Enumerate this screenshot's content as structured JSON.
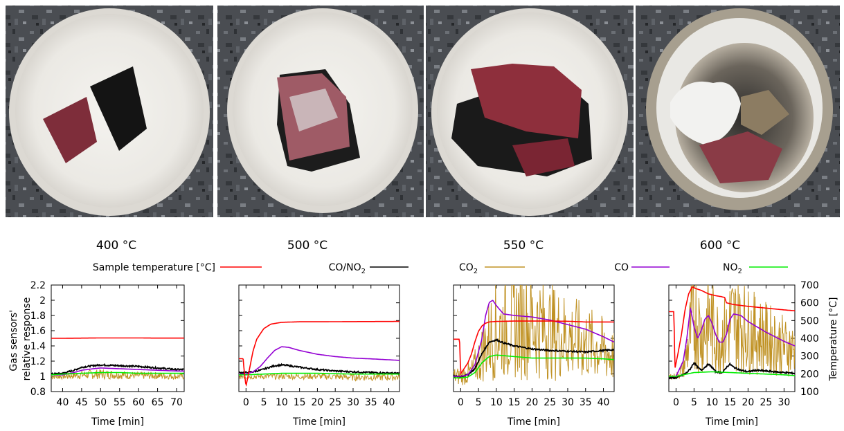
{
  "chart_data": [
    {
      "type": "line",
      "title": "400 °C",
      "xlabel": "Time [min]",
      "ylabel": "Gas sensors' relative response",
      "ylabel2": "Temperature [°C]",
      "xlim": [
        37,
        72
      ],
      "ylim": [
        0.8,
        2.2
      ],
      "y2lim": [
        100,
        700
      ],
      "xticks": [
        40,
        45,
        50,
        55,
        60,
        65,
        70
      ],
      "yticks": [
        0.8,
        1,
        1.2,
        1.4,
        1.6,
        1.8,
        2,
        2.2
      ],
      "series": [
        {
          "name": "Sample temperature [°C]",
          "axis": "right",
          "x": [
            37,
            40,
            45,
            50,
            55,
            60,
            65,
            70,
            72
          ],
          "values": [
            400,
            400,
            401,
            402,
            402,
            402,
            401,
            401,
            401
          ]
        },
        {
          "name": "CO/NO2",
          "x": [
            37,
            40,
            43,
            45,
            48,
            50,
            55,
            60,
            65,
            70,
            72
          ],
          "values": [
            1.03,
            1.04,
            1.08,
            1.12,
            1.14,
            1.15,
            1.14,
            1.13,
            1.11,
            1.09,
            1.09
          ]
        },
        {
          "name": "CO2",
          "noisy": true,
          "x": [
            37,
            40,
            45,
            50,
            55,
            60,
            65,
            70,
            72
          ],
          "values": [
            1.0,
            1.0,
            1.02,
            1.03,
            1.02,
            1.01,
            1.01,
            1.0,
            1.0
          ]
        },
        {
          "name": "CO",
          "x": [
            37,
            40,
            43,
            45,
            48,
            50,
            55,
            60,
            65,
            70,
            72
          ],
          "values": [
            1.02,
            1.02,
            1.05,
            1.08,
            1.1,
            1.11,
            1.1,
            1.09,
            1.08,
            1.07,
            1.07
          ]
        },
        {
          "name": "NO2",
          "x": [
            37,
            40,
            45,
            50,
            55,
            60,
            65,
            70,
            72
          ],
          "values": [
            1.02,
            1.03,
            1.04,
            1.05,
            1.05,
            1.04,
            1.04,
            1.04,
            1.04
          ]
        }
      ]
    },
    {
      "type": "line",
      "title": "500 °C",
      "xlabel": "Time [min]",
      "xlim": [
        -2,
        43
      ],
      "ylim": [
        0.8,
        2.2
      ],
      "y2lim": [
        100,
        700
      ],
      "xticks": [
        0,
        5,
        10,
        15,
        20,
        25,
        30,
        35,
        40
      ],
      "series": [
        {
          "name": "Sample temperature [°C]",
          "axis": "right",
          "x": [
            -2,
            -0.8,
            -0.5,
            0,
            1,
            2,
            3,
            5,
            7,
            10,
            15,
            20,
            30,
            43
          ],
          "values": [
            285,
            285,
            215,
            130,
            230,
            330,
            395,
            455,
            480,
            490,
            493,
            493,
            494,
            495
          ]
        },
        {
          "name": "CO/NO2",
          "x": [
            -2,
            0,
            2,
            4,
            6,
            8,
            10,
            12,
            15,
            20,
            25,
            30,
            35,
            43
          ],
          "values": [
            1.05,
            1.05,
            1.06,
            1.08,
            1.11,
            1.14,
            1.15,
            1.14,
            1.12,
            1.09,
            1.07,
            1.06,
            1.05,
            1.04
          ]
        },
        {
          "name": "CO2",
          "noisy": true,
          "x": [
            -2,
            0,
            5,
            10,
            20,
            30,
            43
          ],
          "values": [
            1.0,
            1.0,
            1.0,
            1.0,
            1.0,
            0.99,
            0.99
          ]
        },
        {
          "name": "CO",
          "x": [
            -2,
            0,
            2,
            4,
            6,
            8,
            10,
            12,
            15,
            20,
            25,
            30,
            35,
            43
          ],
          "values": [
            1.03,
            1.03,
            1.06,
            1.13,
            1.24,
            1.34,
            1.39,
            1.38,
            1.34,
            1.29,
            1.26,
            1.24,
            1.23,
            1.21
          ]
        },
        {
          "name": "NO2",
          "x": [
            -2,
            0,
            5,
            10,
            20,
            30,
            43
          ],
          "values": [
            1.02,
            1.02,
            1.03,
            1.04,
            1.04,
            1.03,
            1.03
          ]
        }
      ]
    },
    {
      "type": "line",
      "title": "550 °C",
      "xlabel": "Time [min]",
      "xlim": [
        -2,
        43
      ],
      "ylim": [
        0.8,
        2.2
      ],
      "y2lim": [
        100,
        700
      ],
      "xticks": [
        0,
        5,
        10,
        15,
        20,
        25,
        30,
        35,
        40
      ],
      "series": [
        {
          "name": "Sample temperature [°C]",
          "axis": "right",
          "x": [
            -2,
            -0.3,
            0,
            1,
            2,
            3,
            4,
            5,
            6,
            7,
            8,
            10,
            15,
            20,
            25,
            30,
            35,
            43
          ],
          "values": [
            395,
            395,
            200,
            230,
            260,
            310,
            380,
            440,
            470,
            485,
            492,
            495,
            497,
            497,
            497,
            496,
            492,
            492
          ]
        },
        {
          "name": "CO/NO2",
          "x": [
            -2,
            0,
            2,
            4,
            6,
            8,
            10,
            12,
            15,
            20,
            25,
            30,
            35,
            40,
            43
          ],
          "values": [
            1.0,
            1.0,
            1.02,
            1.1,
            1.3,
            1.45,
            1.48,
            1.44,
            1.4,
            1.36,
            1.34,
            1.33,
            1.32,
            1.34,
            1.35
          ]
        },
        {
          "name": "CO2",
          "noisy": true,
          "x": [
            -2,
            0,
            3,
            5,
            8,
            10,
            12,
            15,
            18,
            20,
            25,
            30,
            35,
            40,
            43
          ],
          "values": [
            1.0,
            1.0,
            1.05,
            1.2,
            1.5,
            1.6,
            1.62,
            1.68,
            1.72,
            1.7,
            1.6,
            1.52,
            1.44,
            1.35,
            1.25
          ]
        },
        {
          "name": "CO",
          "x": [
            -2,
            0,
            2,
            4,
            6,
            7,
            8,
            9,
            10,
            12,
            15,
            20,
            25,
            30,
            35,
            40,
            43
          ],
          "values": [
            1.0,
            1.0,
            1.02,
            1.15,
            1.5,
            1.8,
            1.97,
            2.0,
            1.93,
            1.82,
            1.8,
            1.78,
            1.74,
            1.68,
            1.62,
            1.52,
            1.45
          ]
        },
        {
          "name": "NO2",
          "x": [
            -2,
            0,
            2,
            4,
            6,
            8,
            10,
            15,
            20,
            25,
            30,
            35,
            40,
            43
          ],
          "values": [
            0.98,
            0.98,
            0.99,
            1.05,
            1.18,
            1.26,
            1.28,
            1.26,
            1.24,
            1.24,
            1.24,
            1.24,
            1.23,
            1.22
          ]
        }
      ]
    },
    {
      "type": "line",
      "title": "600 °C",
      "xlabel": "Time [min]",
      "xlim": [
        -2,
        33
      ],
      "ylim": [
        0.8,
        2.2
      ],
      "y2lim": [
        100,
        700
      ],
      "xticks": [
        0,
        5,
        10,
        15,
        20,
        25,
        30
      ],
      "series": [
        {
          "name": "Sample temperature [°C]",
          "axis": "right",
          "x": [
            -2,
            -0.6,
            -0.3,
            0.5,
            1.5,
            2.5,
            3.5,
            4.5,
            5.5,
            7,
            9,
            11,
            12.5,
            13.5,
            14,
            16,
            20,
            25,
            30,
            33
          ],
          "values": [
            550,
            550,
            230,
            310,
            420,
            560,
            650,
            690,
            680,
            670,
            650,
            640,
            635,
            630,
            600,
            590,
            580,
            570,
            560,
            555
          ]
        },
        {
          "name": "CO/NO2",
          "x": [
            -2,
            0,
            2,
            3,
            4,
            5,
            6,
            7,
            8,
            9,
            10,
            11,
            13,
            14,
            15,
            16,
            18,
            20,
            22,
            25,
            30,
            33
          ],
          "values": [
            0.98,
            0.98,
            1.02,
            1.05,
            1.1,
            1.18,
            1.12,
            1.08,
            1.12,
            1.16,
            1.12,
            1.06,
            1.05,
            1.12,
            1.16,
            1.12,
            1.08,
            1.06,
            1.08,
            1.07,
            1.05,
            1.04
          ]
        },
        {
          "name": "CO2",
          "noisy": true,
          "x": [
            -2,
            0,
            2,
            3,
            4,
            5,
            6,
            7,
            8,
            9,
            10,
            12,
            14,
            15,
            16,
            18,
            20,
            25,
            30,
            33
          ],
          "values": [
            1.0,
            1.0,
            1.1,
            1.3,
            1.6,
            1.8,
            1.7,
            1.55,
            1.6,
            1.75,
            1.65,
            1.5,
            1.55,
            1.7,
            1.72,
            1.68,
            1.6,
            1.5,
            1.4,
            1.35
          ]
        },
        {
          "name": "CO",
          "x": [
            -2,
            0,
            2,
            3,
            4,
            5,
            6,
            7,
            8,
            9,
            10,
            11,
            12,
            13,
            14,
            15,
            16,
            18,
            20,
            25,
            30,
            33
          ],
          "values": [
            1.0,
            1.0,
            1.2,
            1.5,
            1.9,
            1.65,
            1.5,
            1.6,
            1.75,
            1.8,
            1.7,
            1.55,
            1.45,
            1.45,
            1.55,
            1.75,
            1.82,
            1.8,
            1.72,
            1.58,
            1.46,
            1.4
          ]
        },
        {
          "name": "NO2",
          "x": [
            -2,
            0,
            3,
            5,
            10,
            15,
            20,
            25,
            30,
            33
          ],
          "values": [
            1.0,
            1.0,
            1.03,
            1.05,
            1.06,
            1.05,
            1.04,
            1.03,
            1.02,
            1.01
          ]
        }
      ]
    }
  ],
  "legend": [
    {
      "label": "Sample temperature [°C]",
      "color": "#ff0000"
    },
    {
      "label": "CO/NO",
      "sub": "2",
      "color": "#000000"
    },
    {
      "label": "CO",
      "sub": "2",
      "color": "#c09224"
    },
    {
      "label": "CO",
      "sub": "",
      "color": "#9400d3"
    },
    {
      "label": "NO",
      "sub": "2",
      "color": "#00ee00"
    }
  ],
  "series_colors": {
    "Sample temperature [°C]": "#ff0000",
    "CO/NO2": "#000000",
    "CO2": "#c09224",
    "CO": "#9400d3",
    "NO2": "#00ee00"
  },
  "axis_text": {
    "ylabel_line1": "Gas sensors'",
    "ylabel_line2": "relative response",
    "ylabel2": "Temperature [°C]"
  },
  "photos": [
    {
      "description_color": "#f3f1ec"
    },
    {
      "description_color": "#f3f1ec"
    },
    {
      "description_color": "#f3f1ec"
    },
    {
      "description_color": "#e8e6e2"
    }
  ]
}
